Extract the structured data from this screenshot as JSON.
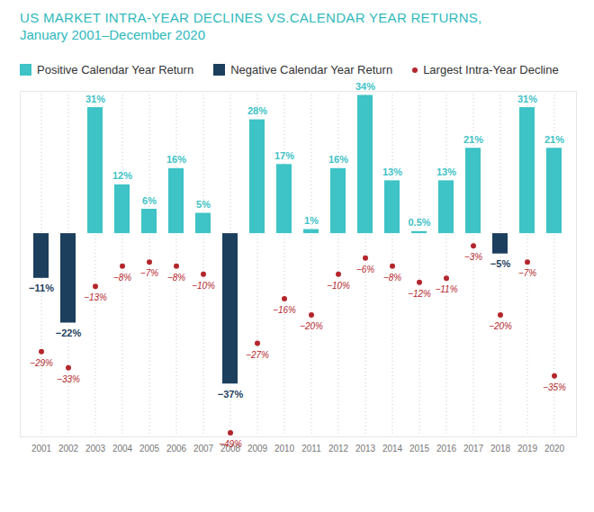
{
  "chart_data": {
    "type": "bar",
    "title": "US MARKET INTRA-YEAR DECLINES VS.CALENDAR YEAR RETURNS,",
    "subtitle": "January 2001–December 2020",
    "categories": [
      "2001",
      "2002",
      "2003",
      "2004",
      "2005",
      "2006",
      "2007",
      "2008",
      "2009",
      "2010",
      "2011",
      "2012",
      "2013",
      "2014",
      "2015",
      "2016",
      "2017",
      "2018",
      "2019",
      "2020"
    ],
    "series": [
      {
        "name": "Positive Calendar Year Return",
        "type": "bar",
        "color": "#3ec3c6",
        "values": [
          null,
          null,
          31,
          12,
          6,
          16,
          5,
          null,
          28,
          17,
          1,
          16,
          34,
          13,
          0.5,
          13,
          21,
          null,
          31,
          21
        ],
        "value_labels": [
          null,
          null,
          "31%",
          "12%",
          "6%",
          "16%",
          "5%",
          null,
          "28%",
          "17%",
          "1%",
          "16%",
          "34%",
          "13%",
          "0.5%",
          "13%",
          "21%",
          null,
          "31%",
          "21%"
        ]
      },
      {
        "name": "Negative Calendar Year Return",
        "type": "bar",
        "color": "#1d3f5e",
        "values": [
          -11,
          -22,
          null,
          null,
          null,
          null,
          null,
          -37,
          null,
          null,
          null,
          null,
          null,
          null,
          null,
          null,
          null,
          -5,
          null,
          null
        ],
        "value_labels": [
          "−11%",
          "−22%",
          null,
          null,
          null,
          null,
          null,
          "−37%",
          null,
          null,
          null,
          null,
          null,
          null,
          null,
          null,
          null,
          "−5%",
          null,
          null
        ]
      },
      {
        "name": "Largest Intra-Year Decline",
        "type": "scatter",
        "marker": "circle",
        "color": "#b3262c",
        "values": [
          -29,
          -33,
          -13,
          -8,
          -7,
          -8,
          -10,
          -49,
          -27,
          -16,
          -20,
          -10,
          -6,
          -8,
          -12,
          -11,
          -3,
          -20,
          -7,
          -35
        ],
        "value_labels": [
          "−29%",
          "−33%",
          "−13%",
          "−8%",
          "−7%",
          "−8%",
          "−10%",
          "−49%",
          "−27%",
          "−16%",
          "−20%",
          "−10%",
          "−6%",
          "−8%",
          "−12%",
          "−11%",
          "−3%",
          "−20%",
          "−7%",
          "−35%"
        ]
      }
    ],
    "ylim": [
      -50,
      35
    ],
    "yticks": [],
    "tick_labels": "x",
    "grid": true,
    "data_labels": true,
    "legend": "top"
  }
}
